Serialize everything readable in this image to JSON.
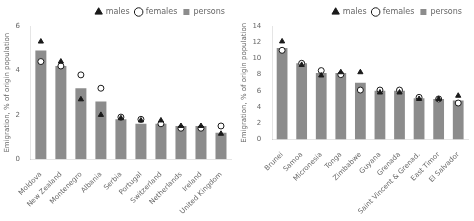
{
  "chart_data": [
    {
      "type": "bar",
      "categories": [
        "Moldova",
        "New Zealand",
        "Montenegro",
        "Albania",
        "Serbia",
        "Portugal",
        "Switzerland",
        "Netherlands",
        "Ireland",
        "United Kingdom"
      ],
      "series": [
        {
          "name": "persons",
          "type": "bar",
          "color": "#8c8c8c",
          "values": [
            4.9,
            4.2,
            3.2,
            2.6,
            1.8,
            1.6,
            1.6,
            1.5,
            1.5,
            1.2
          ]
        },
        {
          "name": "males",
          "type": "scatter",
          "marker": "triangle",
          "color": "#1a1a1a",
          "values": [
            5.3,
            4.4,
            2.7,
            2.0,
            1.85,
            1.75,
            1.75,
            1.5,
            1.5,
            1.15
          ]
        },
        {
          "name": "females",
          "type": "scatter",
          "marker": "circle",
          "color": "#1a1a1a",
          "values": [
            4.4,
            4.2,
            3.8,
            3.2,
            1.9,
            1.8,
            1.6,
            1.4,
            1.4,
            1.5
          ]
        }
      ],
      "ylim": [
        0,
        6
      ],
      "yticks": [
        0,
        2,
        4,
        6
      ],
      "ylabel": "Emigration, % of origin population",
      "grid": false,
      "legend": "upper right"
    },
    {
      "type": "bar",
      "categories": [
        "Brunei",
        "Samoa",
        "Micronesia",
        "Tonga",
        "Zimbabwe",
        "Guyana",
        "Grenada",
        "Saint Vincent & Grenad.",
        "East Timor",
        "El Salvador"
      ],
      "series": [
        {
          "name": "persons",
          "type": "bar",
          "color": "#8c8c8c",
          "values": [
            11.3,
            9.4,
            8.2,
            8.2,
            7.0,
            6.0,
            6.0,
            5.1,
            5.0,
            4.8
          ]
        },
        {
          "name": "males",
          "type": "scatter",
          "marker": "triangle",
          "color": "#1a1a1a",
          "values": [
            12.1,
            9.2,
            7.9,
            8.3,
            8.3,
            5.8,
            5.8,
            5.0,
            5.0,
            5.4
          ]
        },
        {
          "name": "females",
          "type": "scatter",
          "marker": "circle",
          "color": "#1a1a1a",
          "values": [
            11.0,
            9.4,
            8.5,
            8.0,
            6.1,
            6.1,
            6.1,
            5.2,
            5.0,
            4.5
          ]
        }
      ],
      "ylim": [
        0,
        14
      ],
      "yticks": [
        0,
        2,
        4,
        6,
        8,
        10,
        12,
        14
      ],
      "ylabel": "Emigration, % of origin population",
      "grid": false,
      "legend": "upper right"
    }
  ]
}
